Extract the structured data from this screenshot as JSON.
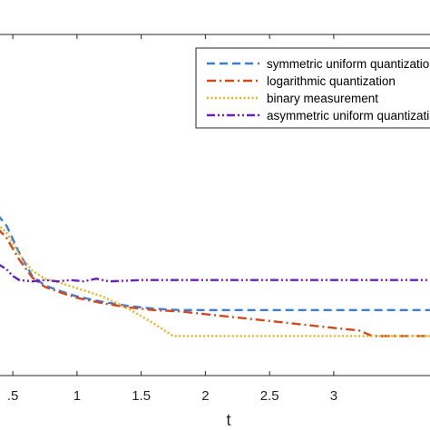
{
  "chart_data": {
    "type": "line",
    "title": "",
    "xlabel": "t",
    "ylabel": "",
    "x_visible_range": [
      0.4,
      3.75
    ],
    "y_visible_range": [
      -0.65,
      1.85
    ],
    "xticks": [
      0.5,
      1,
      1.5,
      2,
      2.5,
      3
    ],
    "xtick_labels": [
      ".5",
      "1",
      "1.5",
      "2",
      "2.5",
      "3"
    ],
    "grid": false,
    "legend_position": "top-right",
    "series": [
      {
        "name": "symmetric uniform quantization",
        "color": "#3b7ddd",
        "dash": "dashed",
        "x": [
          0.38,
          0.45,
          0.55,
          0.65,
          0.75,
          0.9,
          1.0,
          1.2,
          1.4,
          1.6,
          1.8,
          2.0,
          2.5,
          3.0,
          3.5,
          3.75
        ],
        "y": [
          0.53,
          0.45,
          0.25,
          0.08,
          0.01,
          -0.04,
          -0.07,
          -0.11,
          -0.14,
          -0.16,
          -0.17,
          -0.17,
          -0.17,
          -0.17,
          -0.17,
          -0.17
        ]
      },
      {
        "name": "logarithmic quantization",
        "color": "#d04a1d",
        "dash": "dashdot",
        "x": [
          0.38,
          0.45,
          0.55,
          0.65,
          0.75,
          0.9,
          1.0,
          1.2,
          1.4,
          1.6,
          1.8,
          2.0,
          2.2,
          2.4,
          2.6,
          2.8,
          3.0,
          3.2,
          3.3,
          3.5,
          3.75
        ],
        "y": [
          0.43,
          0.36,
          0.2,
          0.07,
          0.0,
          -0.05,
          -0.08,
          -0.12,
          -0.15,
          -0.17,
          -0.18,
          -0.2,
          -0.22,
          -0.24,
          -0.26,
          -0.28,
          -0.3,
          -0.32,
          -0.36,
          -0.36,
          -0.36
        ]
      },
      {
        "name": "binary measurement",
        "color": "#e6b020",
        "dash": "dotted",
        "x": [
          0.38,
          0.45,
          0.55,
          0.65,
          0.75,
          0.9,
          1.0,
          1.2,
          1.4,
          1.6,
          1.7,
          1.75,
          2.0,
          2.5,
          3.0,
          3.5,
          3.75
        ],
        "y": [
          0.46,
          0.4,
          0.24,
          0.12,
          0.06,
          0.02,
          -0.01,
          -0.07,
          -0.16,
          -0.27,
          -0.33,
          -0.36,
          -0.36,
          -0.36,
          -0.36,
          -0.36,
          -0.36
        ]
      },
      {
        "name": "asymmetric uniform quantization",
        "color": "#6a1fbf",
        "dash": "dashdotdot",
        "x": [
          0.38,
          0.45,
          0.5,
          0.55,
          0.65,
          0.75,
          0.85,
          0.95,
          1.05,
          1.15,
          1.25,
          1.5,
          2.0,
          2.5,
          3.0,
          3.5,
          3.75
        ],
        "y": [
          0.17,
          0.13,
          0.08,
          0.05,
          0.04,
          0.05,
          0.04,
          0.05,
          0.04,
          0.06,
          0.04,
          0.05,
          0.05,
          0.05,
          0.05,
          0.05,
          0.05
        ]
      }
    ]
  },
  "legend": {
    "items": [
      "symmetric uniform quantization",
      "logarithmic quantization",
      "binary measurement",
      "asymmetric uniform quantization"
    ]
  }
}
